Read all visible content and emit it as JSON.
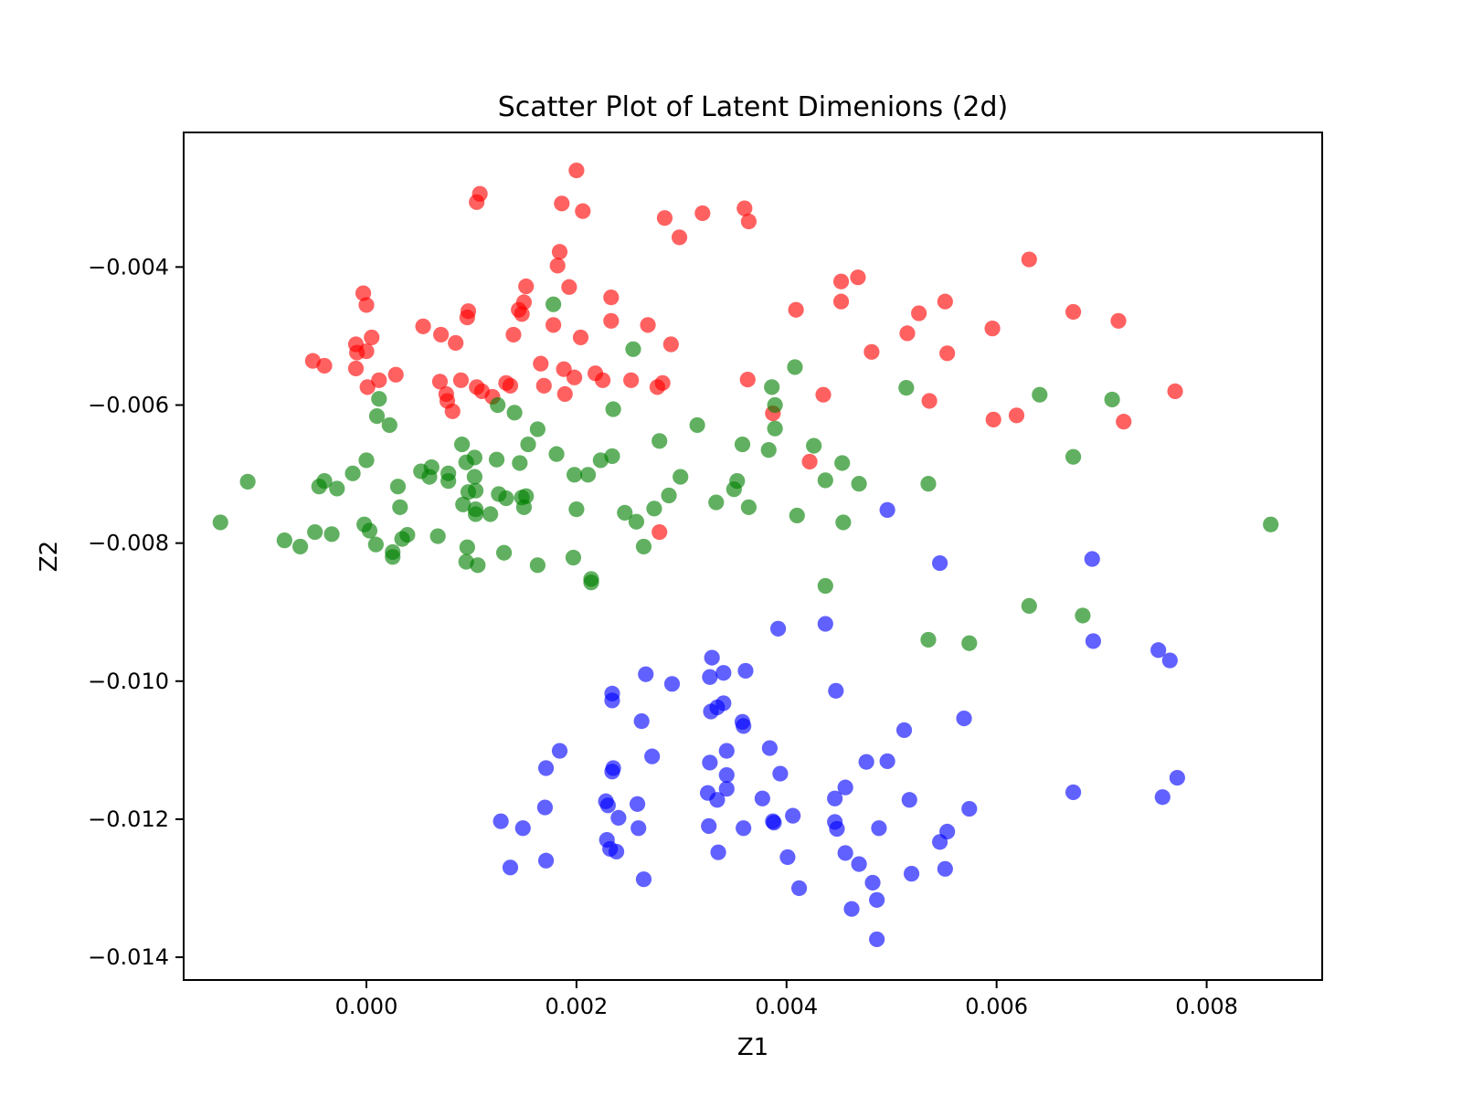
{
  "chart_data": {
    "type": "scatter",
    "title": "Scatter Plot of Latent Dimenions (2d)",
    "xlabel": "Z1",
    "ylabel": "Z2",
    "xlim": [
      -0.00174,
      0.0091
    ],
    "ylim": [
      -0.01433,
      -0.00205
    ],
    "grid": false,
    "x_ticks": [
      {
        "value": 0.0,
        "label": "0.000"
      },
      {
        "value": 0.002,
        "label": "0.002"
      },
      {
        "value": 0.004,
        "label": "0.004"
      },
      {
        "value": 0.006,
        "label": "0.006"
      },
      {
        "value": 0.008,
        "label": "0.008"
      }
    ],
    "y_ticks": [
      {
        "value": -0.004,
        "label": "−0.004"
      },
      {
        "value": -0.006,
        "label": "−0.006"
      },
      {
        "value": -0.008,
        "label": "−0.008"
      },
      {
        "value": -0.01,
        "label": "−0.010"
      },
      {
        "value": -0.012,
        "label": "−0.012"
      },
      {
        "value": -0.014,
        "label": "−0.014"
      }
    ],
    "series": [
      {
        "color": "#ff0000",
        "opacity": 0.62,
        "points": [
          [
            0.002,
            -0.0026
          ],
          [
            0.00105,
            -0.00306
          ],
          [
            0.00108,
            -0.00294
          ],
          [
            0.00186,
            -0.00308
          ],
          [
            0.00206,
            -0.00319
          ],
          [
            0.00284,
            -0.00329
          ],
          [
            0.0032,
            -0.00322
          ],
          [
            0.0036,
            -0.00315
          ],
          [
            0.00364,
            -0.00334
          ],
          [
            0.00298,
            -0.00357
          ],
          [
            0.00184,
            -0.00378
          ],
          [
            0.00182,
            -0.00398
          ],
          [
            0.00152,
            -0.00428
          ],
          [
            0.00193,
            -0.00429
          ],
          [
            0.0015,
            -0.00451
          ],
          [
            0.00148,
            -0.00468
          ],
          [
            0.00145,
            -0.00462
          ],
          [
            0.00097,
            -0.00464
          ],
          [
            0.00096,
            -0.00473
          ],
          [
            -3e-05,
            -0.00438
          ],
          [
            0.0,
            -0.00455
          ],
          [
            0.00054,
            -0.00486
          ],
          [
            0.00071,
            -0.00498
          ],
          [
            0.00085,
            -0.0051
          ],
          [
            0.0014,
            -0.00498
          ],
          [
            0.00178,
            -0.00484
          ],
          [
            0.00204,
            -0.00502
          ],
          [
            0.00233,
            -0.00478
          ],
          [
            0.00233,
            -0.00444
          ],
          [
            0.00268,
            -0.00484
          ],
          [
            0.0029,
            -0.00512
          ],
          [
            5e-05,
            -0.00502
          ],
          [
            -0.0001,
            -0.00512
          ],
          [
            -9e-05,
            -0.00524
          ],
          [
            0.0,
            -0.00522
          ],
          [
            -0.00051,
            -0.00536
          ],
          [
            -0.0004,
            -0.00543
          ],
          [
            -0.0001,
            -0.00547
          ],
          [
            0.00028,
            -0.00556
          ],
          [
            0.00012,
            -0.00564
          ],
          [
            1e-05,
            -0.00574
          ],
          [
            0.0007,
            -0.00566
          ],
          [
            0.00076,
            -0.00584
          ],
          [
            0.00077,
            -0.00594
          ],
          [
            0.00082,
            -0.00609
          ],
          [
            0.0009,
            -0.00564
          ],
          [
            0.00105,
            -0.00574
          ],
          [
            0.0011,
            -0.0058
          ],
          [
            0.0012,
            -0.00588
          ],
          [
            0.00133,
            -0.00568
          ],
          [
            0.00137,
            -0.00572
          ],
          [
            0.00166,
            -0.0054
          ],
          [
            0.00169,
            -0.00572
          ],
          [
            0.00188,
            -0.00548
          ],
          [
            0.00189,
            -0.00584
          ],
          [
            0.00198,
            -0.0056
          ],
          [
            0.00218,
            -0.00554
          ],
          [
            0.00225,
            -0.00564
          ],
          [
            0.00252,
            -0.00564
          ],
          [
            0.00277,
            -0.00574
          ],
          [
            0.00282,
            -0.00568
          ],
          [
            0.00363,
            -0.00563
          ],
          [
            0.00387,
            -0.00612
          ],
          [
            0.00409,
            -0.00462
          ],
          [
            0.00452,
            -0.00421
          ],
          [
            0.00468,
            -0.00415
          ],
          [
            0.00452,
            -0.0045
          ],
          [
            0.00526,
            -0.00467
          ],
          [
            0.00551,
            -0.0045
          ],
          [
            0.00515,
            -0.00496
          ],
          [
            0.00481,
            -0.00523
          ],
          [
            0.00553,
            -0.00525
          ],
          [
            0.00596,
            -0.00489
          ],
          [
            0.00631,
            -0.00389
          ],
          [
            0.00673,
            -0.00465
          ],
          [
            0.00716,
            -0.00478
          ],
          [
            0.00435,
            -0.00585
          ],
          [
            0.00536,
            -0.00594
          ],
          [
            0.00597,
            -0.00621
          ],
          [
            0.00619,
            -0.00615
          ],
          [
            0.00721,
            -0.00624
          ],
          [
            0.0077,
            -0.0058
          ],
          [
            0.00422,
            -0.00682
          ],
          [
            0.00279,
            -0.00784
          ]
        ]
      },
      {
        "color": "#008000",
        "opacity": 0.62,
        "points": [
          [
            0.00178,
            -0.00454
          ],
          [
            0.00254,
            -0.00519
          ],
          [
            0.00408,
            -0.00545
          ],
          [
            0.00012,
            -0.00591
          ],
          [
            0.0001,
            -0.00616
          ],
          [
            0.00022,
            -0.00629
          ],
          [
            0.00125,
            -0.006
          ],
          [
            0.00141,
            -0.00611
          ],
          [
            0.00235,
            -0.00606
          ],
          [
            0.00163,
            -0.00635
          ],
          [
            0.00154,
            -0.00657
          ],
          [
            0.00091,
            -0.00657
          ],
          [
            0.00103,
            -0.00676
          ],
          [
            0.00095,
            -0.00683
          ],
          [
            0.00124,
            -0.00679
          ],
          [
            0.00146,
            -0.00684
          ],
          [
            0.00181,
            -0.00671
          ],
          [
            0.00234,
            -0.00674
          ],
          [
            0.00223,
            -0.0068
          ],
          [
            0.00279,
            -0.00652
          ],
          [
            0.00315,
            -0.00629
          ],
          [
            0.00358,
            -0.00657
          ],
          [
            0.00386,
            -0.00574
          ],
          [
            0.00389,
            -0.006
          ],
          [
            0.00389,
            -0.00634
          ],
          [
            0.00383,
            -0.00665
          ],
          [
            0.00426,
            -0.00659
          ],
          [
            0.00453,
            -0.00684
          ],
          [
            0.0,
            -0.0068
          ],
          [
            -0.00013,
            -0.00699
          ],
          [
            -0.00028,
            -0.00721
          ],
          [
            0.0003,
            -0.00718
          ],
          [
            0.00052,
            -0.00696
          ],
          [
            0.00062,
            -0.0069
          ],
          [
            0.0006,
            -0.00704
          ],
          [
            0.00078,
            -0.00699
          ],
          [
            0.00078,
            -0.0071
          ],
          [
            0.00103,
            -0.00704
          ],
          [
            0.00097,
            -0.00726
          ],
          [
            0.00104,
            -0.00724
          ],
          [
            0.00092,
            -0.00744
          ],
          [
            0.00104,
            -0.00751
          ],
          [
            0.00104,
            -0.00758
          ],
          [
            0.00118,
            -0.00758
          ],
          [
            0.00126,
            -0.00729
          ],
          [
            0.00133,
            -0.00735
          ],
          [
            0.00148,
            -0.00734
          ],
          [
            0.0015,
            -0.00748
          ],
          [
            0.00152,
            -0.00732
          ],
          [
            0.00198,
            -0.00701
          ],
          [
            0.00211,
            -0.00701
          ],
          [
            0.002,
            -0.00751
          ],
          [
            0.00246,
            -0.00756
          ],
          [
            0.00257,
            -0.00769
          ],
          [
            0.00264,
            -0.00805
          ],
          [
            0.00274,
            -0.0075
          ],
          [
            0.00288,
            -0.00731
          ],
          [
            0.00299,
            -0.00704
          ],
          [
            0.00333,
            -0.00741
          ],
          [
            0.0035,
            -0.00722
          ],
          [
            0.00353,
            -0.0071
          ],
          [
            0.00364,
            -0.00748
          ],
          [
            0.0041,
            -0.0076
          ],
          [
            0.00437,
            -0.00709
          ],
          [
            0.00454,
            -0.0077
          ],
          [
            0.00469,
            -0.00714
          ],
          [
            0.00535,
            -0.00714
          ],
          [
            0.00514,
            -0.00575
          ],
          [
            0.00641,
            -0.00585
          ],
          [
            0.0071,
            -0.00592
          ],
          [
            0.00673,
            -0.00675
          ],
          [
            0.00861,
            -0.00773
          ],
          [
            -0.00139,
            -0.0077
          ],
          [
            -0.00113,
            -0.00711
          ],
          [
            -0.00078,
            -0.00796
          ],
          [
            -0.00063,
            -0.00805
          ],
          [
            -0.00049,
            -0.00784
          ],
          [
            -0.0004,
            -0.0071
          ],
          [
            -0.00045,
            -0.00718
          ],
          [
            -0.00033,
            -0.00787
          ],
          [
            -2e-05,
            -0.00773
          ],
          [
            3e-05,
            -0.00782
          ],
          [
            9e-05,
            -0.00802
          ],
          [
            0.00025,
            -0.00813
          ],
          [
            0.00025,
            -0.0082
          ],
          [
            0.00034,
            -0.00794
          ],
          [
            0.00039,
            -0.00788
          ],
          [
            0.00068,
            -0.0079
          ],
          [
            0.00096,
            -0.00806
          ],
          [
            0.00095,
            -0.00827
          ],
          [
            0.00106,
            -0.00832
          ],
          [
            0.00131,
            -0.00814
          ],
          [
            0.00163,
            -0.00832
          ],
          [
            0.00197,
            -0.00821
          ],
          [
            0.00214,
            -0.00852
          ],
          [
            0.00214,
            -0.00857
          ],
          [
            0.00437,
            -0.00862
          ],
          [
            0.00631,
            -0.00891
          ],
          [
            0.00682,
            -0.00905
          ],
          [
            0.00535,
            -0.0094
          ],
          [
            0.00574,
            -0.00945
          ],
          [
            0.00032,
            -0.00748
          ]
        ]
      },
      {
        "color": "#0000ff",
        "opacity": 0.62,
        "points": [
          [
            0.00496,
            -0.00752
          ],
          [
            0.00546,
            -0.00829
          ],
          [
            0.00691,
            -0.00823
          ],
          [
            0.00392,
            -0.00924
          ],
          [
            0.00437,
            -0.00917
          ],
          [
            0.00692,
            -0.00942
          ],
          [
            0.00754,
            -0.00955
          ],
          [
            0.00765,
            -0.0097
          ],
          [
            0.00329,
            -0.00966
          ],
          [
            0.00327,
            -0.00994
          ],
          [
            0.0034,
            -0.00988
          ],
          [
            0.00361,
            -0.00985
          ],
          [
            0.00266,
            -0.0099
          ],
          [
            0.00291,
            -0.01004
          ],
          [
            0.00234,
            -0.01018
          ],
          [
            0.00234,
            -0.01028
          ],
          [
            0.00328,
            -0.01044
          ],
          [
            0.00334,
            -0.01038
          ],
          [
            0.0034,
            -0.01032
          ],
          [
            0.00358,
            -0.01059
          ],
          [
            0.00359,
            -0.01065
          ],
          [
            0.00262,
            -0.01058
          ],
          [
            0.00447,
            -0.01014
          ],
          [
            0.00569,
            -0.01054
          ],
          [
            0.00512,
            -0.01071
          ],
          [
            0.00184,
            -0.01101
          ],
          [
            0.00272,
            -0.01109
          ],
          [
            0.00343,
            -0.01101
          ],
          [
            0.00384,
            -0.01097
          ],
          [
            0.00235,
            -0.01126
          ],
          [
            0.00234,
            -0.01131
          ],
          [
            0.00171,
            -0.01126
          ],
          [
            0.00327,
            -0.01118
          ],
          [
            0.00343,
            -0.01136
          ],
          [
            0.00394,
            -0.01134
          ],
          [
            0.00476,
            -0.01117
          ],
          [
            0.00496,
            -0.01116
          ],
          [
            0.00325,
            -0.01162
          ],
          [
            0.00334,
            -0.01172
          ],
          [
            0.00343,
            -0.01156
          ],
          [
            0.00377,
            -0.0117
          ],
          [
            0.0017,
            -0.01183
          ],
          [
            0.00228,
            -0.01174
          ],
          [
            0.0023,
            -0.0118
          ],
          [
            0.00258,
            -0.01178
          ],
          [
            0.0024,
            -0.01198
          ],
          [
            0.00446,
            -0.0117
          ],
          [
            0.00456,
            -0.01154
          ],
          [
            0.00517,
            -0.01172
          ],
          [
            0.00574,
            -0.01185
          ],
          [
            0.00128,
            -0.01203
          ],
          [
            0.00149,
            -0.01213
          ],
          [
            0.00229,
            -0.0123
          ],
          [
            0.00232,
            -0.01243
          ],
          [
            0.00238,
            -0.01247
          ],
          [
            0.00259,
            -0.01213
          ],
          [
            0.00326,
            -0.0121
          ],
          [
            0.00359,
            -0.01213
          ],
          [
            0.00387,
            -0.01203
          ],
          [
            0.00388,
            -0.01205
          ],
          [
            0.00406,
            -0.01195
          ],
          [
            0.00446,
            -0.01204
          ],
          [
            0.00448,
            -0.01214
          ],
          [
            0.00488,
            -0.01213
          ],
          [
            0.00553,
            -0.01218
          ],
          [
            0.00546,
            -0.01233
          ],
          [
            0.00137,
            -0.0127
          ],
          [
            0.00171,
            -0.0126
          ],
          [
            0.00264,
            -0.01287
          ],
          [
            0.00335,
            -0.01248
          ],
          [
            0.00401,
            -0.01255
          ],
          [
            0.00412,
            -0.013
          ],
          [
            0.00456,
            -0.01249
          ],
          [
            0.00469,
            -0.01265
          ],
          [
            0.00482,
            -0.01292
          ],
          [
            0.00486,
            -0.01317
          ],
          [
            0.00462,
            -0.0133
          ],
          [
            0.00486,
            -0.01374
          ],
          [
            0.00519,
            -0.01279
          ],
          [
            0.00551,
            -0.01272
          ],
          [
            0.00673,
            -0.01161
          ],
          [
            0.00758,
            -0.01168
          ],
          [
            0.00772,
            -0.0114
          ]
        ]
      }
    ]
  }
}
